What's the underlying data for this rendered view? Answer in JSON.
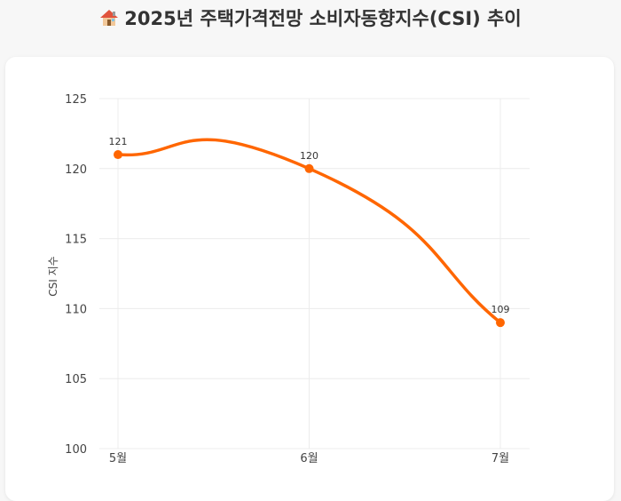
{
  "title": "2025년 주택가격전망 소비자동향지수(CSI) 추이",
  "icon": "house-icon",
  "chart_data": {
    "type": "line",
    "title": "2025년 주택가격전망 소비자동향지수(CSI) 추이",
    "categories": [
      "5월",
      "6월",
      "7월"
    ],
    "series": [
      {
        "values": [
          121,
          120,
          109
        ],
        "color": "#ff6600"
      }
    ],
    "data_labels": [
      "121",
      "120",
      "109"
    ],
    "xlabel": "",
    "ylabel": "CSI 지수",
    "ylim": [
      100,
      125
    ],
    "yticks": [
      100,
      105,
      110,
      115,
      120,
      125
    ],
    "grid": true,
    "smooth": true
  }
}
